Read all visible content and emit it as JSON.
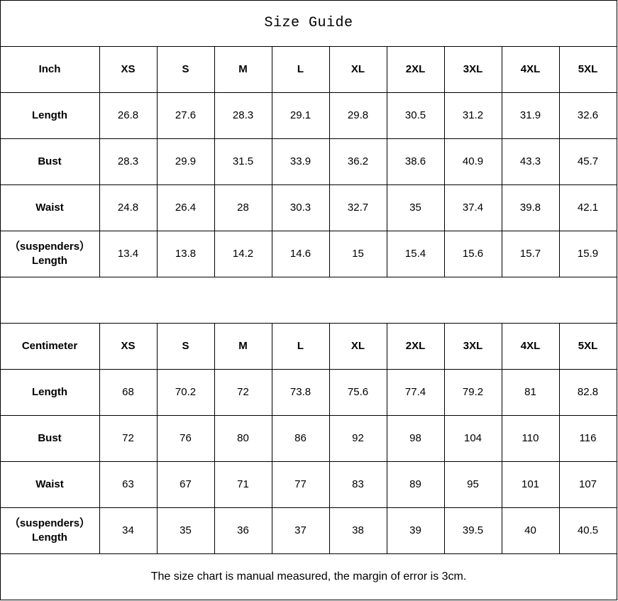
{
  "title": "Size Guide",
  "sizes": [
    "XS",
    "S",
    "M",
    "L",
    "XL",
    "2XL",
    "3XL",
    "4XL",
    "5XL"
  ],
  "tables": [
    {
      "unit": "Inch",
      "rows": [
        {
          "label": "Length",
          "values": [
            "26.8",
            "27.6",
            "28.3",
            "29.1",
            "29.8",
            "30.5",
            "31.2",
            "31.9",
            "32.6"
          ]
        },
        {
          "label": "Bust",
          "values": [
            "28.3",
            "29.9",
            "31.5",
            "33.9",
            "36.2",
            "38.6",
            "40.9",
            "43.3",
            "45.7"
          ]
        },
        {
          "label": "Waist",
          "values": [
            "24.8",
            "26.4",
            "28",
            "30.3",
            "32.7",
            "35",
            "37.4",
            "39.8",
            "42.1"
          ]
        },
        {
          "label": "（suspenders）\nLength",
          "values": [
            "13.4",
            "13.8",
            "14.2",
            "14.6",
            "15",
            "15.4",
            "15.6",
            "15.7",
            "15.9"
          ]
        }
      ]
    },
    {
      "unit": "Centimeter",
      "rows": [
        {
          "label": "Length",
          "values": [
            "68",
            "70.2",
            "72",
            "73.8",
            "75.6",
            "77.4",
            "79.2",
            "81",
            "82.8"
          ]
        },
        {
          "label": "Bust",
          "values": [
            "72",
            "76",
            "80",
            "86",
            "92",
            "98",
            "104",
            "110",
            "116"
          ]
        },
        {
          "label": "Waist",
          "values": [
            "63",
            "67",
            "71",
            "77",
            "83",
            "89",
            "95",
            "101",
            "107"
          ]
        },
        {
          "label": "（suspenders）\nLength",
          "values": [
            "34",
            "35",
            "36",
            "37",
            "38",
            "39",
            "39.5",
            "40",
            "40.5"
          ]
        }
      ]
    }
  ],
  "note": "The size chart is manual measured, the margin of error is 3cm."
}
